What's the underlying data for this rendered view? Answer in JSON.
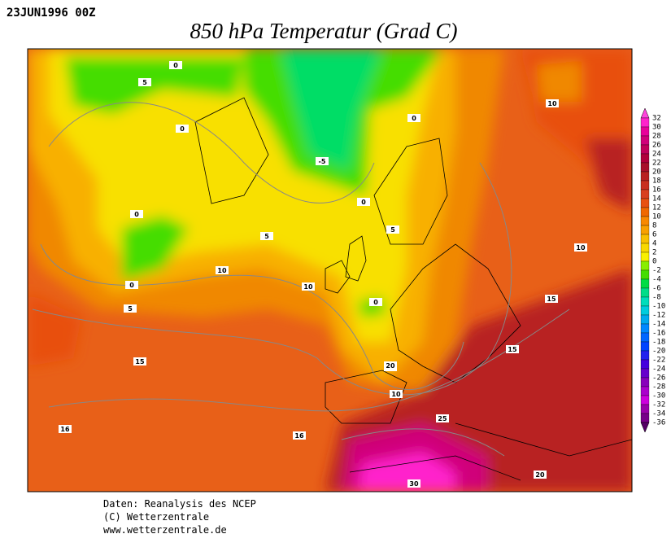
{
  "header": {
    "date": "23JUN1996 00Z",
    "title": "850 hPa Temperatur (Grad C)"
  },
  "colorbar": {
    "labels": [
      32,
      30,
      28,
      26,
      24,
      22,
      20,
      18,
      16,
      14,
      12,
      10,
      8,
      6,
      4,
      2,
      0,
      -2,
      -4,
      -6,
      -8,
      -10,
      -12,
      -14,
      -16,
      -18,
      -20,
      -22,
      -24,
      -26,
      -28,
      -30,
      -32,
      -34,
      -36
    ],
    "colors": [
      "#ff44dd",
      "#ff22cc",
      "#e8009a",
      "#d0007a",
      "#c0005a",
      "#b0003a",
      "#a8102a",
      "#b82020",
      "#c83020",
      "#d84020",
      "#e85010",
      "#f06800",
      "#f88800",
      "#f8a000",
      "#f8c000",
      "#f8d800",
      "#f8f000",
      "#88ee00",
      "#44dd00",
      "#00dd44",
      "#00dd88",
      "#00ddbb",
      "#00ccdd",
      "#00aaee",
      "#0088ff",
      "#0066ff",
      "#0044ff",
      "#2222ee",
      "#4400dd",
      "#6600cc",
      "#8800bb",
      "#aa00cc",
      "#cc00dd",
      "#9900aa",
      "#770088",
      "#550066"
    ]
  },
  "contour_labels": [
    "0",
    "5",
    "0",
    "0",
    "5",
    "0",
    "5",
    "10",
    "-5",
    "0",
    "0",
    "5",
    "10",
    "10",
    "0",
    "5",
    "10",
    "15",
    "15",
    "10",
    "15",
    "20",
    "10",
    "16",
    "16",
    "25",
    "30",
    "20"
  ],
  "footer": [
    "Daten: Reanalysis des NCEP",
    "(C) Wetterzentrale",
    "www.wetterzentrale.de"
  ]
}
